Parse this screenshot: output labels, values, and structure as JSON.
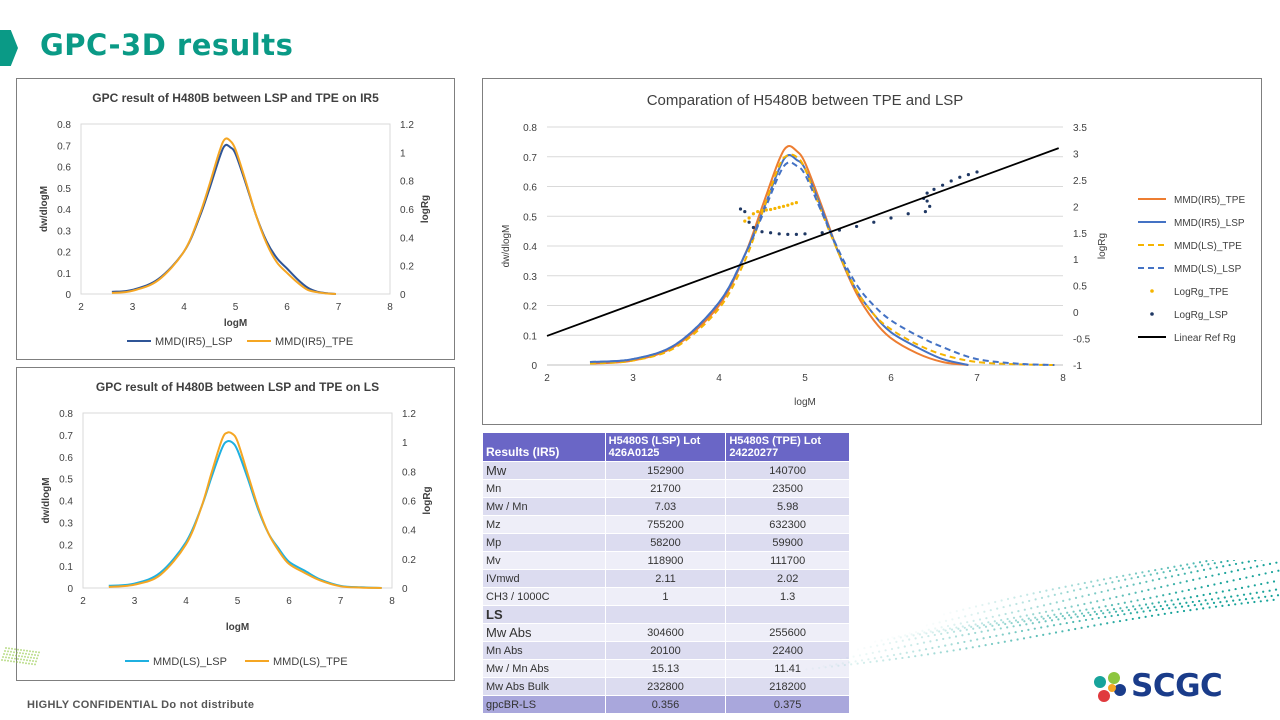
{
  "page": {
    "title": "GPC-3D results",
    "footer": "HIGHLY CONFIDENTIAL Do not distribute",
    "logo_text": "SCGC",
    "accent_color": "#0a9a86"
  },
  "chart_data": [
    {
      "type": "line",
      "title": "GPC result of H480B between LSP and TPE on IR5",
      "xlabel": "logM",
      "ylabel": "dw/dlogM",
      "y2label": "logRg",
      "xlim": [
        2,
        8
      ],
      "ylim": [
        0,
        0.8
      ],
      "y2lim": [
        0,
        1.2
      ],
      "xticks": [
        "2",
        "3",
        "4",
        "5",
        "6",
        "7",
        "8"
      ],
      "yticks": [
        "0",
        "0.1",
        "0.2",
        "0.3",
        "0.4",
        "0.5",
        "0.6",
        "0.7",
        "0.8"
      ],
      "y2ticks": [
        "0",
        "0.2",
        "0.4",
        "0.6",
        "0.8",
        "1",
        "1.2"
      ],
      "legend_position": "bottom",
      "series": [
        {
          "name": "MMD(IR5)_LSP",
          "color": "#2f5597",
          "x": [
            2.6,
            3.0,
            3.5,
            4.0,
            4.3,
            4.5,
            4.7,
            4.8,
            4.9,
            5.0,
            5.2,
            5.4,
            5.6,
            5.8,
            6.0,
            6.2,
            6.4,
            6.6,
            6.8,
            6.95
          ],
          "y": [
            0.01,
            0.02,
            0.07,
            0.2,
            0.36,
            0.5,
            0.65,
            0.7,
            0.69,
            0.66,
            0.52,
            0.37,
            0.25,
            0.17,
            0.12,
            0.07,
            0.03,
            0.01,
            0.003,
            0.0
          ]
        },
        {
          "name": "MMD(IR5)_TPE",
          "color": "#f5a623",
          "x": [
            2.6,
            3.0,
            3.5,
            4.0,
            4.3,
            4.5,
            4.7,
            4.8,
            4.9,
            5.0,
            5.2,
            5.4,
            5.6,
            5.8,
            6.0,
            6.2,
            6.4,
            6.6,
            6.8,
            6.95
          ],
          "y": [
            0.005,
            0.015,
            0.065,
            0.2,
            0.37,
            0.52,
            0.68,
            0.73,
            0.72,
            0.68,
            0.53,
            0.37,
            0.24,
            0.15,
            0.1,
            0.055,
            0.02,
            0.008,
            0.002,
            0.0
          ]
        }
      ]
    },
    {
      "type": "line",
      "title": "GPC result of H480B between LSP and TPE on LS",
      "xlabel": "logM",
      "ylabel": "dw/dlogM",
      "y2label": "logRg",
      "xlim": [
        2,
        8
      ],
      "ylim": [
        0,
        0.8
      ],
      "y2lim": [
        0,
        1.2
      ],
      "xticks": [
        "2",
        "3",
        "4",
        "5",
        "6",
        "7",
        "8"
      ],
      "yticks": [
        "0",
        "0.1",
        "0.2",
        "0.3",
        "0.4",
        "0.5",
        "0.6",
        "0.7",
        "0.8"
      ],
      "y2ticks": [
        "0",
        "0.2",
        "0.4",
        "0.6",
        "0.8",
        "1",
        "1.2"
      ],
      "legend_position": "bottom",
      "series": [
        {
          "name": "MMD(LS)_LSP",
          "color": "#1fb0e0",
          "x": [
            2.5,
            3.0,
            3.5,
            4.0,
            4.3,
            4.5,
            4.7,
            4.8,
            4.9,
            5.0,
            5.2,
            5.4,
            5.6,
            5.8,
            6.0,
            6.3,
            6.6,
            7.0,
            7.4,
            7.8
          ],
          "y": [
            0.01,
            0.02,
            0.07,
            0.21,
            0.37,
            0.51,
            0.64,
            0.67,
            0.665,
            0.63,
            0.5,
            0.36,
            0.25,
            0.18,
            0.12,
            0.08,
            0.04,
            0.01,
            0.003,
            0.0
          ]
        },
        {
          "name": "MMD(LS)_TPE",
          "color": "#f5a623",
          "x": [
            2.5,
            3.0,
            3.5,
            4.0,
            4.3,
            4.5,
            4.7,
            4.8,
            4.9,
            5.0,
            5.2,
            5.4,
            5.6,
            5.8,
            6.0,
            6.3,
            6.6,
            7.0,
            7.4,
            7.8
          ],
          "y": [
            0.005,
            0.015,
            0.06,
            0.2,
            0.37,
            0.53,
            0.68,
            0.71,
            0.705,
            0.67,
            0.52,
            0.37,
            0.25,
            0.17,
            0.11,
            0.07,
            0.035,
            0.008,
            0.002,
            0.0
          ]
        }
      ]
    },
    {
      "type": "line",
      "title": "Comparation of H5480B between TPE and LSP",
      "xlabel": "logM",
      "ylabel": "dw/dlogM",
      "y2label": "logRg",
      "xlim": [
        2,
        8
      ],
      "ylim": [
        0,
        0.8
      ],
      "y2lim": [
        -1,
        3.5
      ],
      "xticks": [
        "2",
        "3",
        "4",
        "5",
        "6",
        "7",
        "8"
      ],
      "yticks": [
        "0",
        "0.1",
        "0.2",
        "0.3",
        "0.4",
        "0.5",
        "0.6",
        "0.7",
        "0.8"
      ],
      "y2ticks": [
        "-1",
        "-0.5",
        "0",
        "0.5",
        "1",
        "1.5",
        "2",
        "2.5",
        "3",
        "3.5"
      ],
      "legend_position": "right",
      "series": [
        {
          "name": "MMD(IR5)_TPE",
          "color": "#ed7d31",
          "style": "solid",
          "axis": "y",
          "x": [
            2.5,
            3.0,
            3.5,
            4.0,
            4.3,
            4.5,
            4.7,
            4.8,
            4.9,
            5.0,
            5.2,
            5.4,
            5.6,
            5.8,
            6.0,
            6.3,
            6.6,
            6.9
          ],
          "y": [
            0.005,
            0.015,
            0.065,
            0.2,
            0.37,
            0.53,
            0.69,
            0.735,
            0.72,
            0.68,
            0.53,
            0.37,
            0.24,
            0.15,
            0.09,
            0.04,
            0.01,
            0.0
          ]
        },
        {
          "name": "MMD(IR5)_LSP",
          "color": "#4472c4",
          "style": "solid",
          "axis": "y",
          "x": [
            2.5,
            3.0,
            3.5,
            4.0,
            4.3,
            4.5,
            4.7,
            4.8,
            4.9,
            5.0,
            5.2,
            5.4,
            5.6,
            5.8,
            6.0,
            6.3,
            6.6,
            6.9
          ],
          "y": [
            0.01,
            0.02,
            0.07,
            0.21,
            0.37,
            0.51,
            0.66,
            0.705,
            0.69,
            0.66,
            0.52,
            0.37,
            0.25,
            0.17,
            0.11,
            0.06,
            0.02,
            0.0
          ]
        },
        {
          "name": "MMD(LS)_TPE",
          "color": "#f5b400",
          "style": "dashed",
          "axis": "y",
          "x": [
            2.5,
            3.0,
            3.5,
            4.0,
            4.3,
            4.5,
            4.7,
            4.8,
            4.9,
            5.0,
            5.2,
            5.4,
            5.6,
            5.8,
            6.0,
            6.3,
            6.6,
            7.0,
            7.5,
            7.9
          ],
          "y": [
            0.005,
            0.015,
            0.06,
            0.19,
            0.35,
            0.51,
            0.67,
            0.705,
            0.7,
            0.66,
            0.51,
            0.37,
            0.25,
            0.17,
            0.12,
            0.07,
            0.035,
            0.01,
            0.002,
            0.0
          ]
        },
        {
          "name": "MMD(LS)_LSP",
          "color": "#4472c4",
          "style": "dashed",
          "axis": "y",
          "x": [
            2.5,
            3.0,
            3.5,
            4.0,
            4.3,
            4.5,
            4.7,
            4.8,
            4.9,
            5.0,
            5.2,
            5.4,
            5.6,
            5.8,
            6.0,
            6.3,
            6.6,
            7.0,
            7.5,
            7.9
          ],
          "y": [
            0.01,
            0.02,
            0.07,
            0.21,
            0.37,
            0.5,
            0.64,
            0.68,
            0.67,
            0.64,
            0.51,
            0.38,
            0.27,
            0.2,
            0.15,
            0.1,
            0.06,
            0.02,
            0.004,
            0.0
          ]
        },
        {
          "name": "LogRg_TPE",
          "color": "#f5b400",
          "style": "dots",
          "axis": "y2",
          "x": [
            4.3,
            4.35,
            4.4,
            4.45,
            4.5,
            4.55,
            4.6,
            4.65,
            4.7,
            4.75,
            4.8,
            4.85,
            4.9
          ],
          "y": [
            1.72,
            1.78,
            1.86,
            1.9,
            1.92,
            1.93,
            1.94,
            1.96,
            1.98,
            2.0,
            2.02,
            2.05,
            2.07
          ]
        },
        {
          "name": "LogRg_LSP",
          "color": "#1f3864",
          "style": "dots",
          "axis": "y2",
          "x": [
            4.25,
            4.3,
            4.35,
            4.4,
            4.5,
            4.6,
            4.7,
            4.8,
            4.9,
            5.0,
            5.2,
            5.4,
            5.6,
            5.8,
            6.0,
            6.2,
            6.4,
            6.45,
            6.42,
            6.38,
            6.42,
            6.5,
            6.6,
            6.7,
            6.8,
            6.9,
            7.0
          ],
          "y": [
            1.95,
            1.9,
            1.7,
            1.6,
            1.52,
            1.5,
            1.48,
            1.47,
            1.47,
            1.48,
            1.5,
            1.55,
            1.62,
            1.7,
            1.78,
            1.86,
            1.9,
            2.0,
            2.1,
            2.15,
            2.25,
            2.32,
            2.4,
            2.48,
            2.55,
            2.6,
            2.65
          ]
        },
        {
          "name": "Linear Ref Rg",
          "color": "#000000",
          "style": "solid",
          "axis": "y2",
          "x": [
            2.0,
            7.95
          ],
          "y": [
            -0.45,
            3.1
          ]
        }
      ]
    }
  ],
  "results_table": {
    "header": [
      "Results  (IR5)",
      "H5480S (LSP) Lot 426A0125",
      "H5480S (TPE)  Lot 24220277"
    ],
    "rows": [
      {
        "label": "Mw",
        "lsp": "152900",
        "tpe": "140700",
        "big": true
      },
      {
        "label": "Mn",
        "lsp": "21700",
        "tpe": "23500"
      },
      {
        "label": "Mw / Mn",
        "lsp": "7.03",
        "tpe": "5.98"
      },
      {
        "label": "Mz",
        "lsp": "755200",
        "tpe": "632300"
      },
      {
        "label": "Mp",
        "lsp": "58200",
        "tpe": "59900"
      },
      {
        "label": "Mv",
        "lsp": "118900",
        "tpe": "111700"
      },
      {
        "label": "IVmwd",
        "lsp": "2.11",
        "tpe": "2.02"
      },
      {
        "label": "CH3 / 1000C",
        "lsp": "1",
        "tpe": "1.3"
      },
      {
        "label": "LS",
        "lsp": "",
        "tpe": "",
        "section": true
      },
      {
        "label": "Mw Abs",
        "lsp": "304600",
        "tpe": "255600",
        "big": true
      },
      {
        "label": "Mn Abs",
        "lsp": "20100",
        "tpe": "22400"
      },
      {
        "label": "Mw / Mn Abs",
        "lsp": "15.13",
        "tpe": "11.41"
      },
      {
        "label": "Mw Abs Bulk",
        "lsp": "232800",
        "tpe": "218200"
      },
      {
        "label": "gpcBR-LS",
        "lsp": "0.356",
        "tpe": "0.375",
        "last": true
      }
    ]
  }
}
